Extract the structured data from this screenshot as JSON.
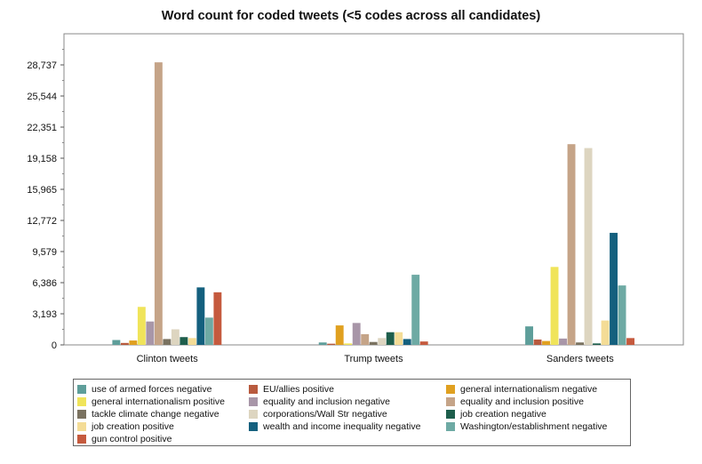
{
  "chart_data": {
    "type": "bar",
    "title": "Word count for coded tweets (<5 codes across all candidates)",
    "xlabel": "",
    "ylabel": "",
    "categories": [
      "Clinton tweets",
      "Trump tweets",
      "Sanders tweets"
    ],
    "yticks": [
      0,
      3193,
      6386,
      9579,
      12772,
      15965,
      19158,
      22351,
      25544,
      28737
    ],
    "ytick_labels": [
      "0",
      "3,193",
      "6,386",
      "9,579",
      "12,772",
      "15,965",
      "19,158",
      "22,351",
      "25,544",
      "28,737"
    ],
    "ylim": [
      0,
      31930
    ],
    "grid": false,
    "legend_position": "bottom",
    "series": [
      {
        "name": "use of armed forces negative",
        "color": "#5e9e9a",
        "values": [
          500,
          250,
          1900
        ]
      },
      {
        "name": "EU/allies positive",
        "color": "#b85a3e",
        "values": [
          200,
          120,
          550
        ]
      },
      {
        "name": "general internationalism negative",
        "color": "#e0a020",
        "values": [
          450,
          2000,
          400
        ]
      },
      {
        "name": "general internationalism positive",
        "color": "#f0e45a",
        "values": [
          3900,
          150,
          8000
        ]
      },
      {
        "name": "equality and inclusion negative",
        "color": "#a896a8",
        "values": [
          2400,
          2250,
          650
        ]
      },
      {
        "name": "equality and inclusion positive",
        "color": "#c5a488",
        "values": [
          29000,
          1100,
          20600
        ]
      },
      {
        "name": "tackle climate change negative",
        "color": "#7a7260",
        "values": [
          600,
          300,
          250
        ]
      },
      {
        "name": "corporations/Wall Str negative",
        "color": "#ddd5c0",
        "values": [
          1600,
          700,
          20200
        ]
      },
      {
        "name": "job creation negative",
        "color": "#1e5e4c",
        "values": [
          800,
          1300,
          150
        ]
      },
      {
        "name": "job creation positive",
        "color": "#f4dc96",
        "values": [
          700,
          1300,
          2500
        ]
      },
      {
        "name": "wealth and income inequality negative",
        "color": "#14607e",
        "values": [
          5900,
          600,
          11500
        ]
      },
      {
        "name": "Washington/establishment negative",
        "color": "#6eaaa4",
        "values": [
          2800,
          7200,
          6100
        ]
      },
      {
        "name": "gun control positive",
        "color": "#c55a3e",
        "values": [
          5400,
          350,
          700
        ]
      }
    ]
  }
}
